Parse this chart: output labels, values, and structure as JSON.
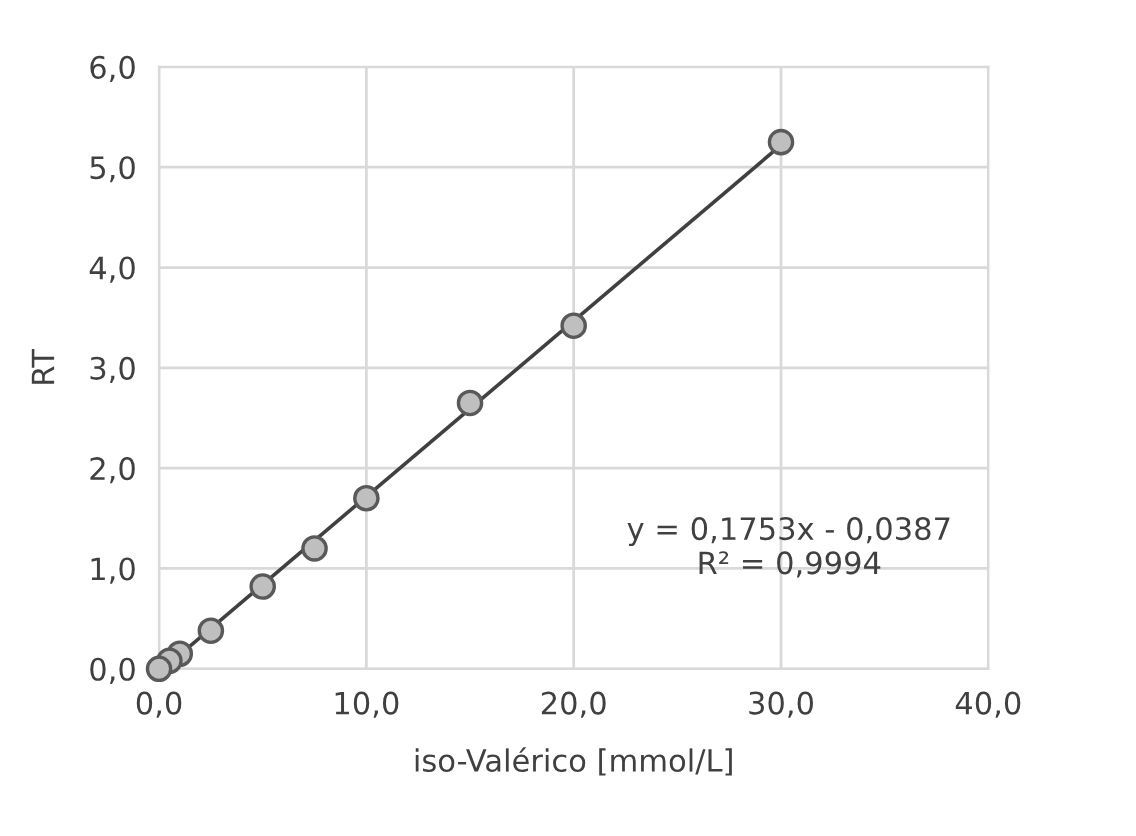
{
  "chart_data": {
    "type": "scatter",
    "xlabel": "iso-Valérico [mmol/L]",
    "ylabel": "RT",
    "xlim": [
      0,
      40
    ],
    "xticks": [
      {
        "value": 0,
        "label": "0,0"
      },
      {
        "value": 10,
        "label": "10,0"
      },
      {
        "value": 20,
        "label": "20,0"
      },
      {
        "value": 30,
        "label": "30,0"
      },
      {
        "value": 40,
        "label": "40,0"
      }
    ],
    "ylim": [
      0,
      6
    ],
    "yticks": [
      {
        "value": 0,
        "label": "0,0"
      },
      {
        "value": 1,
        "label": "1,0"
      },
      {
        "value": 2,
        "label": "2,0"
      },
      {
        "value": 3,
        "label": "3,0"
      },
      {
        "value": 4,
        "label": "4,0"
      },
      {
        "value": 5,
        "label": "5,0"
      },
      {
        "value": 6,
        "label": "6,0"
      }
    ],
    "grid": true,
    "legend": false,
    "series": [
      {
        "marker": "circle",
        "color": "#bfbfbf",
        "x": [
          0,
          0.5,
          1,
          2.5,
          5,
          7.5,
          10,
          15,
          20,
          30
        ],
        "values": [
          0.0,
          0.08,
          0.15,
          0.38,
          0.82,
          1.2,
          1.7,
          2.65,
          3.42,
          5.25
        ]
      },
      {
        "type": "line",
        "color": "#404040",
        "line_style": "solid",
        "x": [
          0.2,
          30
        ],
        "values": [
          0.0,
          5.22
        ]
      }
    ],
    "annotations": [
      "y = 0,1753x - 0,0387\nR² = 0,9994"
    ]
  }
}
